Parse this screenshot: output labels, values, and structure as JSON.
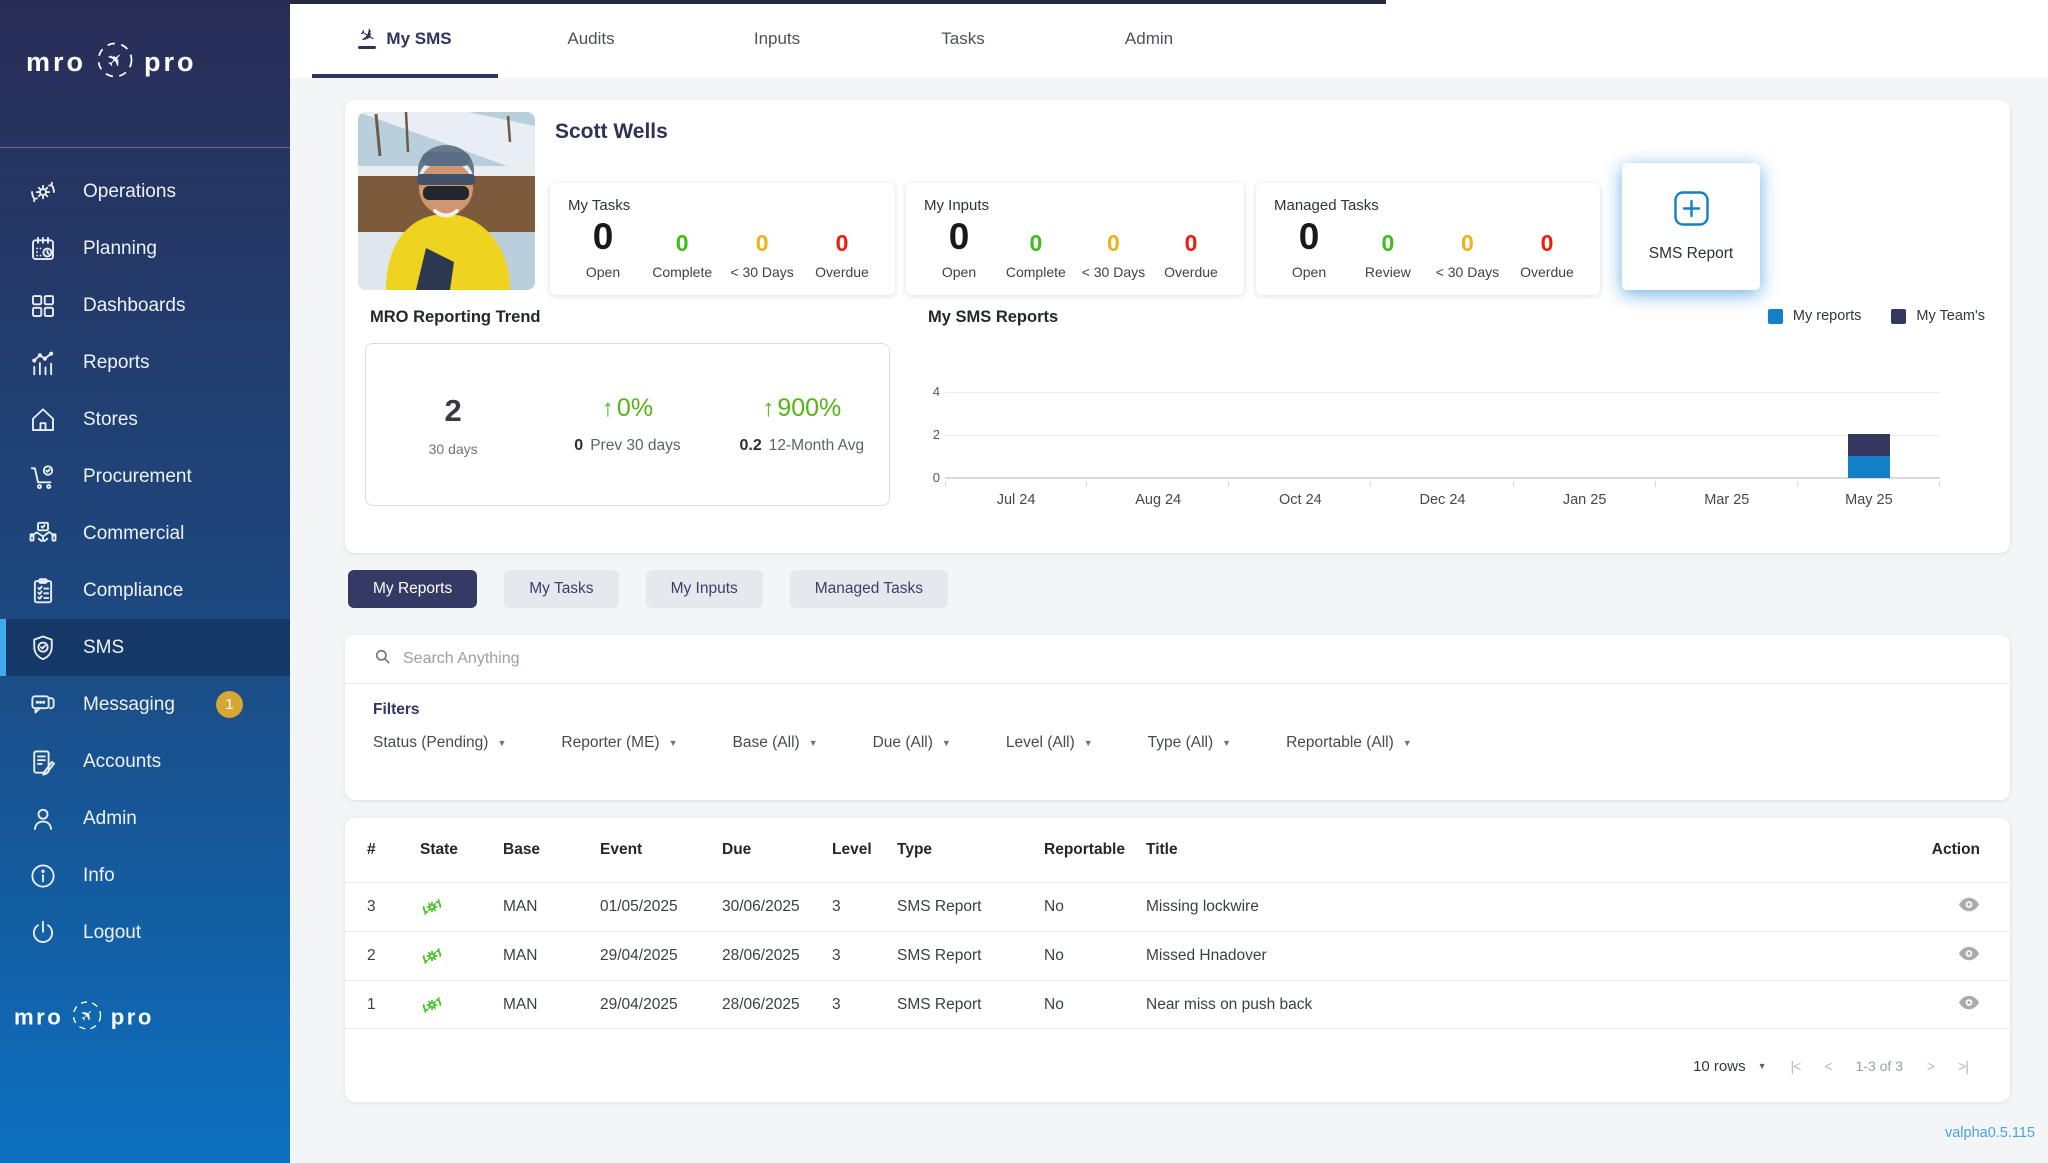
{
  "brand": {
    "word_left": "mro",
    "word_right": "pro",
    "plane_icon": "plane-circle-icon"
  },
  "sidebar": {
    "items": [
      {
        "label": "Operations",
        "icon": "operations-sync-gear-icon"
      },
      {
        "label": "Planning",
        "icon": "planning-calendar-icon"
      },
      {
        "label": "Dashboards",
        "icon": "dashboards-grid-icon"
      },
      {
        "label": "Reports",
        "icon": "reports-chart-icon"
      },
      {
        "label": "Stores",
        "icon": "stores-house-icon"
      },
      {
        "label": "Procurement",
        "icon": "procurement-cart-icon"
      },
      {
        "label": "Commercial",
        "icon": "commercial-handshake-icon"
      },
      {
        "label": "Compliance",
        "icon": "compliance-clipboard-icon"
      },
      {
        "label": "SMS",
        "icon": "sms-shield-icon",
        "active": true
      },
      {
        "label": "Messaging",
        "icon": "messaging-chat-icon",
        "badge": "1"
      },
      {
        "label": "Accounts",
        "icon": "accounts-invoice-icon"
      },
      {
        "label": "Admin",
        "icon": "admin-person-icon"
      },
      {
        "label": "Info",
        "icon": "info-circle-icon"
      },
      {
        "label": "Logout",
        "icon": "logout-power-icon"
      }
    ],
    "badge_color": "#d7a733",
    "active_accent": "#41aaec"
  },
  "tabs": [
    {
      "label": "My SMS",
      "active": true,
      "icon": "plane-landing-icon"
    },
    {
      "label": "Audits"
    },
    {
      "label": "Inputs"
    },
    {
      "label": "Tasks"
    },
    {
      "label": "Admin"
    }
  ],
  "profile": {
    "name": "Scott Wells"
  },
  "stat_cards": [
    {
      "title": "My Tasks",
      "stats": [
        {
          "value": "0",
          "label": "Open",
          "color": "#17191d",
          "big": true
        },
        {
          "value": "0",
          "label": "Complete",
          "color": "#3fbe14"
        },
        {
          "value": "0",
          "label": "< 30 Days",
          "color": "#eeb21c"
        },
        {
          "value": "0",
          "label": "Overdue",
          "color": "#f01d0e"
        }
      ]
    },
    {
      "title": "My Inputs",
      "stats": [
        {
          "value": "0",
          "label": "Open",
          "color": "#17191d",
          "big": true
        },
        {
          "value": "0",
          "label": "Complete",
          "color": "#3fbe14"
        },
        {
          "value": "0",
          "label": "< 30 Days",
          "color": "#eeb21c"
        },
        {
          "value": "0",
          "label": "Overdue",
          "color": "#f01d0e"
        }
      ]
    },
    {
      "title": "Managed Tasks",
      "stats": [
        {
          "value": "0",
          "label": "Open",
          "color": "#17191d",
          "big": true
        },
        {
          "value": "0",
          "label": "Review",
          "color": "#3fbe14"
        },
        {
          "value": "0",
          "label": "< 30 Days",
          "color": "#eeb21c"
        },
        {
          "value": "0",
          "label": "Overdue",
          "color": "#f01d0e"
        }
      ]
    }
  ],
  "sms_report": {
    "label": "SMS Report",
    "icon": "plus-square-icon",
    "accent": "#1180c6"
  },
  "trend": {
    "title": "MRO Reporting Trend",
    "green": "#54b414",
    "current": {
      "value": "2",
      "label": "30 days"
    },
    "prev": {
      "arrow": "↑",
      "delta": "0%",
      "value": "0",
      "label": "Prev 30 days"
    },
    "avg": {
      "arrow": "↑",
      "delta": "900%",
      "value": "0.2",
      "label": "12-Month Avg"
    }
  },
  "chart_data": {
    "type": "bar",
    "title": "My SMS Reports",
    "stacked": true,
    "categories": [
      "Jul 24",
      "Aug 24",
      "Oct 24",
      "Dec 24",
      "Jan 25",
      "Mar 25",
      "May 25"
    ],
    "series": [
      {
        "name": "My reports",
        "color": "#1180c6",
        "values": [
          0,
          0,
          0,
          0,
          0,
          0,
          1
        ]
      },
      {
        "name": "My Team's",
        "color": "#333760",
        "values": [
          0,
          0,
          0,
          0,
          0,
          0,
          1
        ]
      }
    ],
    "yticks": [
      0,
      2,
      4
    ],
    "ylim": [
      0,
      5
    ],
    "grid": true,
    "legend_position": "top-right"
  },
  "view_buttons": [
    {
      "label": "My Reports",
      "active": true
    },
    {
      "label": "My Tasks"
    },
    {
      "label": "My Inputs"
    },
    {
      "label": "Managed Tasks"
    }
  ],
  "search": {
    "placeholder": "Search Anything",
    "icon": "search-icon"
  },
  "filters": {
    "title": "Filters",
    "caret": "▼",
    "items": [
      "Status (Pending)",
      "Reporter (ME)",
      "Base (All)",
      "Due (All)",
      "Level (All)",
      "Type (All)",
      "Reportable (All)"
    ]
  },
  "table": {
    "columns": [
      "#",
      "State",
      "Base",
      "Event",
      "Due",
      "Level",
      "Type",
      "Reportable",
      "Title",
      "Action"
    ],
    "state_icon": "state-sync-gear-icon",
    "action_icon": "eye-icon",
    "rows": [
      {
        "num": "3",
        "base": "MAN",
        "event": "01/05/2025",
        "due": "30/06/2025",
        "level": "3",
        "type": "SMS Report",
        "reportable": "No",
        "title": "Missing lockwire"
      },
      {
        "num": "2",
        "base": "MAN",
        "event": "29/04/2025",
        "due": "28/06/2025",
        "level": "3",
        "type": "SMS Report",
        "reportable": "No",
        "title": "Missed Hnadover"
      },
      {
        "num": "1",
        "base": "MAN",
        "event": "29/04/2025",
        "due": "28/06/2025",
        "level": "3",
        "type": "SMS Report",
        "reportable": "No",
        "title": "Near miss on push back"
      }
    ]
  },
  "pagination": {
    "rows_label": "10 rows",
    "caret": "▼",
    "range": "1-3 of 3",
    "first": "|<",
    "prev": "<",
    "next": ">",
    "last": ">|"
  },
  "version": "valpha0.5.115"
}
